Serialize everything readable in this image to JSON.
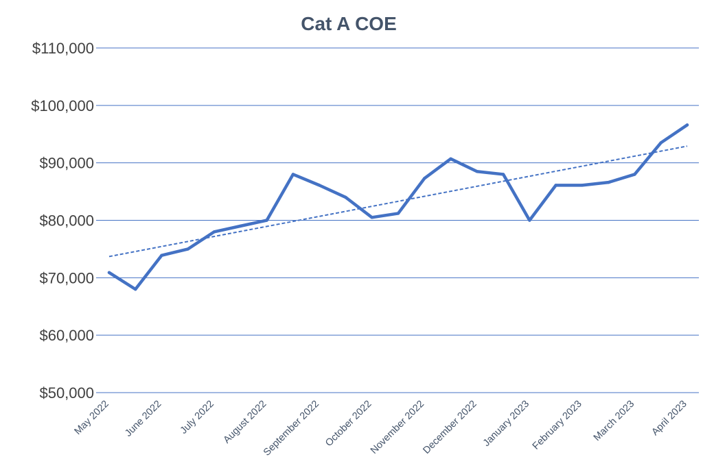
{
  "chart_data": {
    "type": "line",
    "title": "Cat A COE",
    "xlabel": "",
    "ylabel": "",
    "ylim": [
      50000,
      110000
    ],
    "yticks": [
      50000,
      60000,
      70000,
      80000,
      90000,
      100000,
      110000
    ],
    "ytick_labels": [
      "$50,000",
      "$60,000",
      "$70,000",
      "$80,000",
      "$90,000",
      "$100,000",
      "$110,000"
    ],
    "x_tick_labels": [
      "May 2022",
      "June 2022",
      "July 2022",
      "August 2022",
      "September 2022",
      "October 2022",
      "November 2022",
      "December 2022",
      "January 2023",
      "February 2023",
      "March 2023",
      "April 2023"
    ],
    "series": [
      {
        "name": "Cat A COE",
        "color": "#4472C4",
        "values": [
          70900,
          68000,
          73900,
          75000,
          78000,
          79000,
          80000,
          88000,
          86100,
          84000,
          80500,
          81200,
          87300,
          90700,
          88500,
          88000,
          80000,
          86100,
          86100,
          86600,
          88000,
          93500,
          96600
        ]
      }
    ],
    "trendline": {
      "type": "linear",
      "style": "dashed",
      "color": "#4472C4"
    },
    "grid": true,
    "legend": "none"
  }
}
